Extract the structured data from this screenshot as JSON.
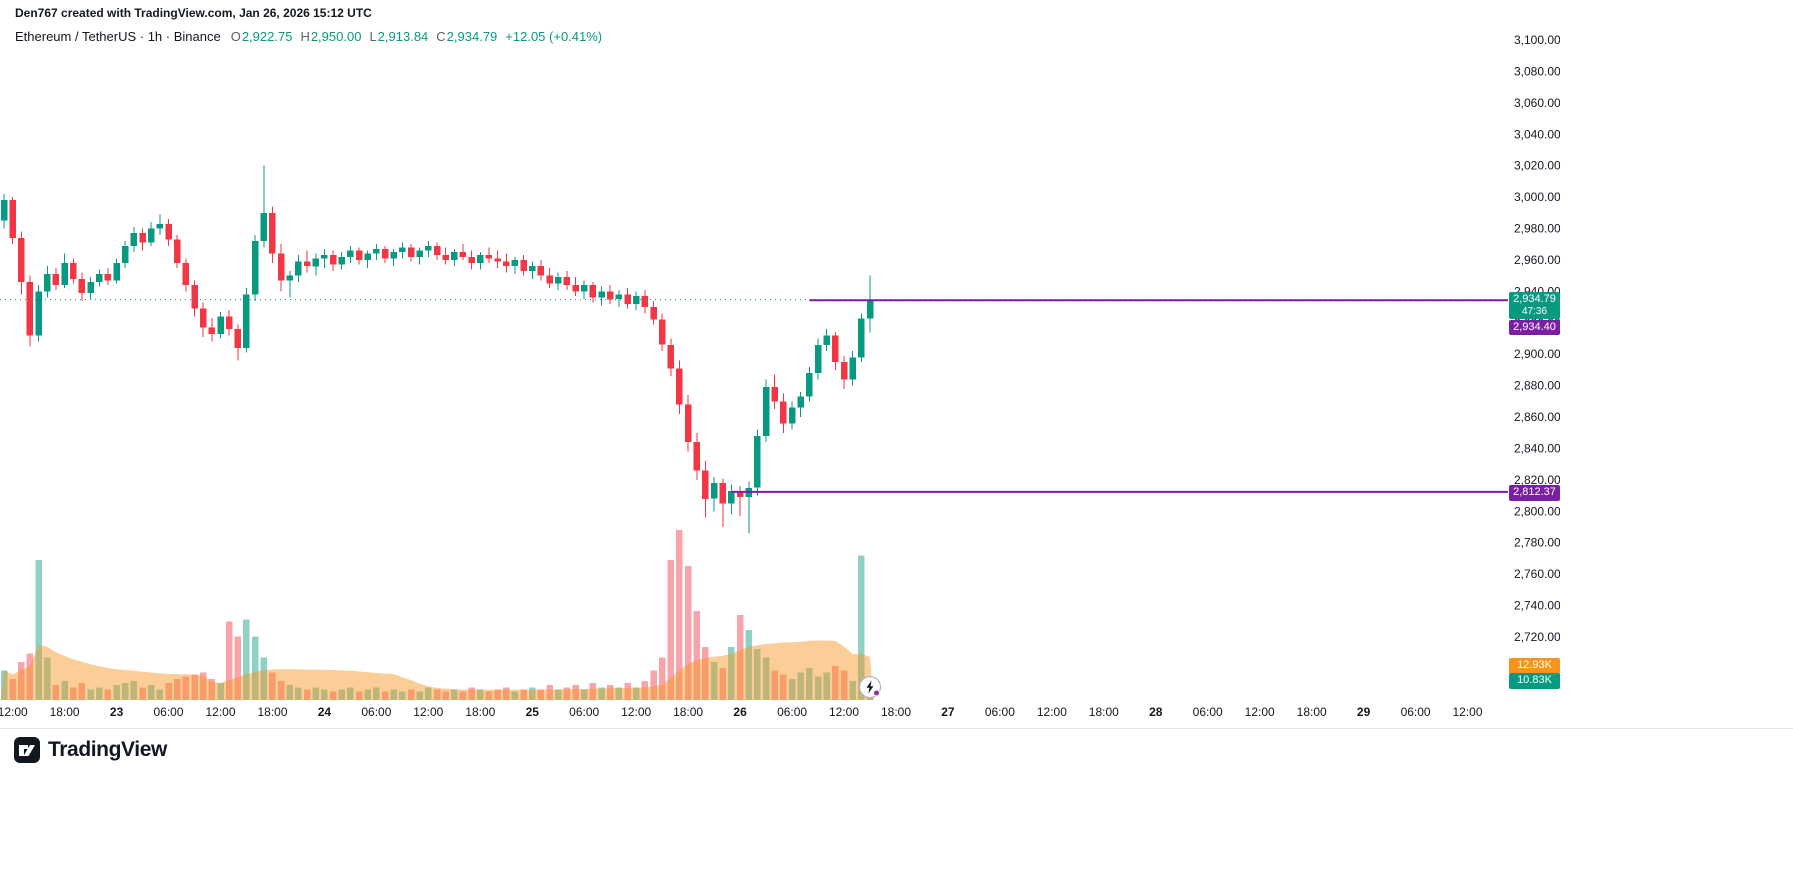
{
  "attribution": "Den767 created with TradingView.com, Jan 26, 2026 15:12 UTC",
  "legend": {
    "series": "Ethereum / TetherUS · 1h · Binance",
    "ohlc": {
      "o_label": "O",
      "o": "2,922.75",
      "h_label": "H",
      "h": "2,950.00",
      "l_label": "L",
      "l": "2,913.84",
      "c_label": "C",
      "c": "2,934.79",
      "change": "+12.05 (+0.41%)"
    }
  },
  "footer": {
    "brand": "TradingView"
  },
  "chart_data": {
    "type": "candlestick",
    "symbol": "Ethereum / TetherUS",
    "exchange": "Binance",
    "interval": "1h",
    "start": "2026-01-22 11:00 UTC",
    "interval_hours": 1,
    "current": {
      "price": 2934.79,
      "label": "2,934.79",
      "countdown": "47:36"
    },
    "levels": [
      {
        "price": 2934.4,
        "label": "2,934.40",
        "start_offset": 93
      },
      {
        "price": 2812.37,
        "label": "2,812.37",
        "start_offset": 84
      }
    ],
    "volume_ma_label": "12.93K",
    "volume_current_label": "10.83K",
    "price_axis": [
      {
        "v": 3100,
        "t": "3,100.00"
      },
      {
        "v": 3080,
        "t": "3,080.00"
      },
      {
        "v": 3060,
        "t": "3,060.00"
      },
      {
        "v": 3040,
        "t": "3,040.00"
      },
      {
        "v": 3020,
        "t": "3,020.00"
      },
      {
        "v": 3000,
        "t": "3,000.00"
      },
      {
        "v": 2980,
        "t": "2,980.00"
      },
      {
        "v": 2960,
        "t": "2,960.00"
      },
      {
        "v": 2940,
        "t": "2,940.00"
      },
      {
        "v": 2920,
        "t": "2,920.00"
      },
      {
        "v": 2900,
        "t": "2,900.00"
      },
      {
        "v": 2880,
        "t": "2,880.00"
      },
      {
        "v": 2860,
        "t": "2,860.00"
      },
      {
        "v": 2840,
        "t": "2,840.00"
      },
      {
        "v": 2820,
        "t": "2,820.00"
      },
      {
        "v": 2800,
        "t": "2,800.00"
      },
      {
        "v": 2780,
        "t": "2,780.00"
      },
      {
        "v": 2760,
        "t": "2,760.00"
      },
      {
        "v": 2740,
        "t": "2,740.00"
      },
      {
        "v": 2720,
        "t": "2,720.00"
      }
    ],
    "time_axis": [
      {
        "o": 1,
        "t": "12:00",
        "d": false
      },
      {
        "o": 7,
        "t": "18:00",
        "d": false
      },
      {
        "o": 13,
        "t": "23",
        "d": true
      },
      {
        "o": 19,
        "t": "06:00",
        "d": false
      },
      {
        "o": 25,
        "t": "12:00",
        "d": false
      },
      {
        "o": 31,
        "t": "18:00",
        "d": false
      },
      {
        "o": 37,
        "t": "24",
        "d": true
      },
      {
        "o": 43,
        "t": "06:00",
        "d": false
      },
      {
        "o": 49,
        "t": "12:00",
        "d": false
      },
      {
        "o": 55,
        "t": "18:00",
        "d": false
      },
      {
        "o": 61,
        "t": "25",
        "d": true
      },
      {
        "o": 67,
        "t": "06:00",
        "d": false
      },
      {
        "o": 73,
        "t": "12:00",
        "d": false
      },
      {
        "o": 79,
        "t": "18:00",
        "d": false
      },
      {
        "o": 85,
        "t": "26",
        "d": true
      },
      {
        "o": 91,
        "t": "06:00",
        "d": false
      },
      {
        "o": 97,
        "t": "12:00",
        "d": false
      },
      {
        "o": 103,
        "t": "18:00",
        "d": false
      },
      {
        "o": 109,
        "t": "27",
        "d": true
      },
      {
        "o": 115,
        "t": "06:00",
        "d": false
      },
      {
        "o": 121,
        "t": "12:00",
        "d": false
      },
      {
        "o": 127,
        "t": "18:00",
        "d": false
      },
      {
        "o": 133,
        "t": "28",
        "d": true
      },
      {
        "o": 139,
        "t": "06:00",
        "d": false
      },
      {
        "o": 145,
        "t": "12:00",
        "d": false
      },
      {
        "o": 151,
        "t": "18:00",
        "d": false
      },
      {
        "o": 157,
        "t": "29",
        "d": true
      },
      {
        "o": 163,
        "t": "06:00",
        "d": false
      },
      {
        "o": 169,
        "t": "12:00",
        "d": false
      }
    ],
    "candles": [
      [
        2985,
        3002,
        2980,
        2998
      ],
      [
        2998,
        3000,
        2970,
        2974
      ],
      [
        2974,
        2978,
        2938,
        2946
      ],
      [
        2946,
        2950,
        2905,
        2912
      ],
      [
        2912,
        2944,
        2908,
        2940
      ],
      [
        2940,
        2956,
        2936,
        2951
      ],
      [
        2951,
        2955,
        2941,
        2944
      ],
      [
        2944,
        2964,
        2942,
        2958
      ],
      [
        2958,
        2961,
        2945,
        2948
      ],
      [
        2948,
        2952,
        2934,
        2939
      ],
      [
        2939,
        2949,
        2935,
        2946
      ],
      [
        2946,
        2954,
        2943,
        2951
      ],
      [
        2951,
        2955,
        2944,
        2947
      ],
      [
        2947,
        2961,
        2945,
        2958
      ],
      [
        2958,
        2972,
        2955,
        2969
      ],
      [
        2969,
        2981,
        2965,
        2977
      ],
      [
        2977,
        2980,
        2966,
        2971
      ],
      [
        2971,
        2984,
        2969,
        2980
      ],
      [
        2980,
        2989,
        2976,
        2983
      ],
      [
        2983,
        2986,
        2969,
        2973
      ],
      [
        2973,
        2976,
        2955,
        2958
      ],
      [
        2958,
        2961,
        2940,
        2944
      ],
      [
        2944,
        2947,
        2924,
        2929
      ],
      [
        2929,
        2933,
        2911,
        2917
      ],
      [
        2917,
        2923,
        2908,
        2913
      ],
      [
        2913,
        2927,
        2910,
        2924
      ],
      [
        2924,
        2928,
        2912,
        2916
      ],
      [
        2916,
        2919,
        2896,
        2904
      ],
      [
        2904,
        2942,
        2901,
        2938
      ],
      [
        2938,
        2976,
        2934,
        2972
      ],
      [
        2972,
        3020,
        2968,
        2990
      ],
      [
        2990,
        2994,
        2958,
        2964
      ],
      [
        2964,
        2970,
        2940,
        2947
      ],
      [
        2947,
        2953,
        2936,
        2950
      ],
      [
        2950,
        2963,
        2946,
        2959
      ],
      [
        2959,
        2966,
        2952,
        2956
      ],
      [
        2956,
        2964,
        2950,
        2961
      ],
      [
        2961,
        2967,
        2955,
        2963
      ],
      [
        2963,
        2966,
        2953,
        2957
      ],
      [
        2957,
        2965,
        2954,
        2962
      ],
      [
        2962,
        2969,
        2958,
        2966
      ],
      [
        2966,
        2968,
        2957,
        2960
      ],
      [
        2960,
        2966,
        2955,
        2964
      ],
      [
        2964,
        2970,
        2960,
        2967
      ],
      [
        2967,
        2969,
        2958,
        2961
      ],
      [
        2961,
        2967,
        2956,
        2965
      ],
      [
        2965,
        2971,
        2961,
        2968
      ],
      [
        2968,
        2970,
        2959,
        2962
      ],
      [
        2962,
        2968,
        2957,
        2966
      ],
      [
        2966,
        2972,
        2962,
        2969
      ],
      [
        2969,
        2971,
        2960,
        2963
      ],
      [
        2963,
        2968,
        2957,
        2960
      ],
      [
        2960,
        2967,
        2956,
        2965
      ],
      [
        2965,
        2970,
        2960,
        2962
      ],
      [
        2962,
        2966,
        2954,
        2958
      ],
      [
        2958,
        2965,
        2954,
        2963
      ],
      [
        2963,
        2968,
        2958,
        2961
      ],
      [
        2961,
        2966,
        2955,
        2959
      ],
      [
        2959,
        2964,
        2952,
        2956
      ],
      [
        2956,
        2962,
        2951,
        2960
      ],
      [
        2960,
        2963,
        2950,
        2953
      ],
      [
        2953,
        2959,
        2948,
        2956
      ],
      [
        2956,
        2960,
        2947,
        2950
      ],
      [
        2950,
        2955,
        2942,
        2945
      ],
      [
        2945,
        2952,
        2941,
        2949
      ],
      [
        2949,
        2953,
        2941,
        2944
      ],
      [
        2944,
        2949,
        2937,
        2940
      ],
      [
        2940,
        2947,
        2935,
        2944
      ],
      [
        2944,
        2946,
        2933,
        2936
      ],
      [
        2936,
        2943,
        2931,
        2940
      ],
      [
        2940,
        2944,
        2932,
        2935
      ],
      [
        2935,
        2941,
        2930,
        2938
      ],
      [
        2938,
        2942,
        2929,
        2932
      ],
      [
        2932,
        2940,
        2928,
        2937
      ],
      [
        2937,
        2941,
        2926,
        2930
      ],
      [
        2930,
        2934,
        2919,
        2922
      ],
      [
        2922,
        2926,
        2902,
        2906
      ],
      [
        2906,
        2910,
        2886,
        2891
      ],
      [
        2891,
        2896,
        2862,
        2868
      ],
      [
        2868,
        2874,
        2838,
        2844
      ],
      [
        2844,
        2850,
        2820,
        2826
      ],
      [
        2826,
        2832,
        2796,
        2808
      ],
      [
        2808,
        2822,
        2800,
        2818
      ],
      [
        2818,
        2821,
        2790,
        2805
      ],
      [
        2805,
        2817,
        2798,
        2813
      ],
      [
        2813,
        2816,
        2797,
        2809
      ],
      [
        2809,
        2819,
        2786,
        2815
      ],
      [
        2815,
        2852,
        2810,
        2848
      ],
      [
        2848,
        2884,
        2844,
        2879
      ],
      [
        2879,
        2887,
        2865,
        2870
      ],
      [
        2870,
        2875,
        2850,
        2856
      ],
      [
        2856,
        2870,
        2852,
        2866
      ],
      [
        2866,
        2876,
        2860,
        2873
      ],
      [
        2873,
        2892,
        2870,
        2888
      ],
      [
        2888,
        2910,
        2884,
        2906
      ],
      [
        2906,
        2916,
        2902,
        2912
      ],
      [
        2912,
        2914,
        2890,
        2895
      ],
      [
        2895,
        2899,
        2878,
        2884
      ],
      [
        2884,
        2902,
        2880,
        2898
      ],
      [
        2898,
        2926,
        2895,
        2922.74
      ],
      [
        2922.75,
        2950,
        2913.84,
        2934.79
      ]
    ],
    "volumes_k": [
      14,
      10,
      18,
      22,
      66,
      20,
      7,
      9,
      6,
      8,
      5,
      6,
      5,
      7,
      8,
      9,
      6,
      7,
      5,
      8,
      10,
      11,
      12,
      13,
      10,
      8,
      37,
      30,
      38,
      30,
      20,
      13,
      9,
      7,
      6,
      5,
      6,
      5,
      4,
      5,
      6,
      4,
      5,
      6,
      4,
      5,
      4,
      5,
      4,
      6,
      5,
      4,
      5,
      4,
      6,
      5,
      4,
      5,
      6,
      4,
      5,
      6,
      5,
      7,
      5,
      6,
      7,
      5,
      8,
      6,
      7,
      6,
      8,
      6,
      9,
      14,
      20,
      66,
      80,
      63,
      42,
      25,
      18,
      15,
      25,
      40,
      33,
      24,
      20,
      14,
      12,
      10,
      13,
      15,
      11,
      13,
      16,
      14,
      9,
      68,
      10.83
    ],
    "price_range": {
      "min": 2720,
      "max": 3100
    },
    "colors": {
      "up": "#089981",
      "down": "#F23645",
      "vol_up": "rgba(8,153,129,0.45)",
      "vol_down": "rgba(242,54,69,0.45)",
      "vol_ma_area": "rgba(247,147,26,0.45)",
      "level": "#7b1fa2",
      "current_line": "#089981",
      "axis_text": "#131722"
    }
  }
}
